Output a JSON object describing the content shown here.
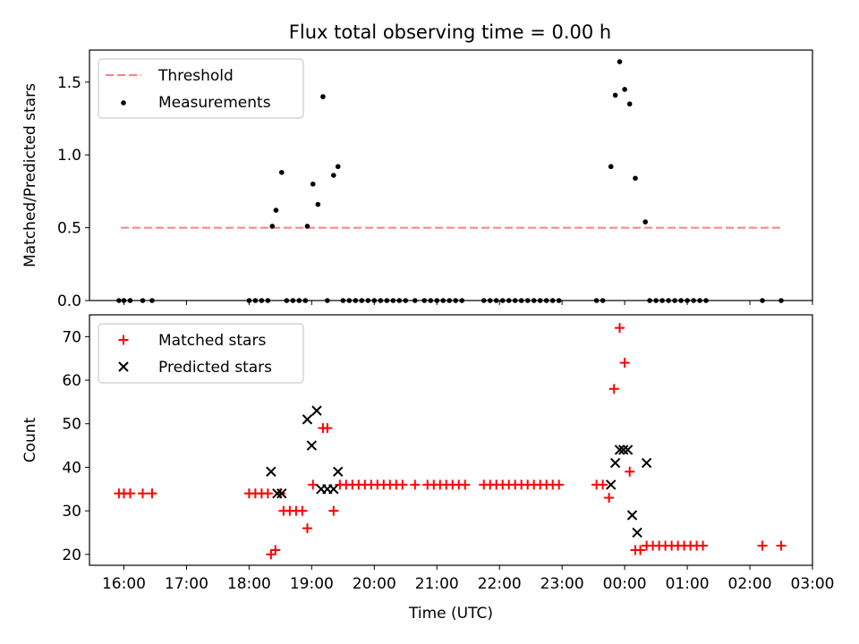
{
  "chart_data": [
    {
      "type": "scatter",
      "title": "Flux total observing time = 0.00 h",
      "xlabel": "",
      "ylabel": "Matched/Predicted stars",
      "xlim": [
        15.45,
        27.0
      ],
      "ylim": [
        0.0,
        1.72
      ],
      "yticks": [
        0.0,
        0.5,
        1.0,
        1.5
      ],
      "ytick_labels": [
        "0.0",
        "0.5",
        "1.0",
        "1.5"
      ],
      "legend": {
        "position": "top-left",
        "entries": [
          "Threshold",
          "Measurements"
        ]
      },
      "threshold": {
        "name": "Threshold",
        "x": [
          15.95,
          26.5
        ],
        "y": [
          0.5,
          0.5
        ],
        "color": "#ff7f7f"
      },
      "series": [
        {
          "name": "Measurements",
          "marker": "dot",
          "color": "#000000",
          "x": [
            15.92,
            16.0,
            16.1,
            16.3,
            16.45,
            18.0,
            18.1,
            18.2,
            18.3,
            18.37,
            18.43,
            18.52,
            18.6,
            18.7,
            18.8,
            18.9,
            18.93,
            19.02,
            19.1,
            19.18,
            19.25,
            19.35,
            19.42,
            19.5,
            19.6,
            19.7,
            19.8,
            19.9,
            20.0,
            20.1,
            20.2,
            20.3,
            20.4,
            20.5,
            20.65,
            20.8,
            20.9,
            21.0,
            21.1,
            21.2,
            21.3,
            21.4,
            21.75,
            21.85,
            21.95,
            22.05,
            22.15,
            22.25,
            22.35,
            22.45,
            22.55,
            22.65,
            22.75,
            22.85,
            22.95,
            23.55,
            23.65,
            23.78,
            23.85,
            23.92,
            24.0,
            24.08,
            24.17,
            24.33,
            24.4,
            24.5,
            24.6,
            24.7,
            24.8,
            24.9,
            25.0,
            25.1,
            25.2,
            25.3,
            26.2,
            26.5
          ],
          "y": [
            0,
            0,
            0,
            0,
            0,
            0,
            0,
            0,
            0,
            0.51,
            0.62,
            0.88,
            0,
            0,
            0,
            0,
            0.51,
            0.8,
            0.66,
            1.4,
            0,
            0.86,
            0.92,
            0,
            0,
            0,
            0,
            0,
            0,
            0,
            0,
            0,
            0,
            0,
            0,
            0,
            0,
            0,
            0,
            0,
            0,
            0,
            0,
            0,
            0,
            0,
            0,
            0,
            0,
            0,
            0,
            0,
            0,
            0,
            0,
            0,
            0,
            0.92,
            1.41,
            1.64,
            1.45,
            1.35,
            0.84,
            0.54,
            0,
            0,
            0,
            0,
            0,
            0,
            0,
            0,
            0,
            0,
            0,
            0
          ]
        }
      ]
    },
    {
      "type": "scatter",
      "title": "",
      "xlabel": "Time (UTC)",
      "ylabel": "Count",
      "xlim": [
        15.45,
        27.0
      ],
      "ylim": [
        17.5,
        75.0
      ],
      "xticks": [
        16,
        17,
        18,
        19,
        20,
        21,
        22,
        23,
        24,
        25,
        26,
        27
      ],
      "xtick_labels": [
        "16:00",
        "17:00",
        "18:00",
        "19:00",
        "20:00",
        "21:00",
        "22:00",
        "23:00",
        "00:00",
        "01:00",
        "02:00",
        "03:00"
      ],
      "yticks": [
        20,
        30,
        40,
        50,
        60,
        70
      ],
      "ytick_labels": [
        "20",
        "30",
        "40",
        "50",
        "60",
        "70"
      ],
      "legend": {
        "position": "top-left",
        "entries": [
          "Matched stars",
          "Predicted stars"
        ]
      },
      "series": [
        {
          "name": "Matched stars",
          "marker": "plus",
          "color": "#ff0000",
          "x": [
            15.92,
            16.0,
            16.1,
            16.3,
            16.45,
            18.0,
            18.1,
            18.2,
            18.3,
            18.35,
            18.42,
            18.5,
            18.55,
            18.65,
            18.75,
            18.85,
            18.93,
            19.02,
            19.18,
            19.25,
            19.35,
            19.45,
            19.55,
            19.65,
            19.75,
            19.85,
            19.95,
            20.05,
            20.15,
            20.25,
            20.35,
            20.45,
            20.65,
            20.85,
            20.95,
            21.05,
            21.15,
            21.25,
            21.35,
            21.45,
            21.75,
            21.85,
            21.95,
            22.05,
            22.15,
            22.25,
            22.35,
            22.45,
            22.55,
            22.65,
            22.75,
            22.85,
            22.95,
            23.55,
            23.65,
            23.75,
            23.83,
            23.92,
            24.0,
            24.08,
            24.17,
            24.25,
            24.35,
            24.45,
            24.55,
            24.65,
            24.75,
            24.85,
            24.95,
            25.05,
            25.15,
            25.25,
            26.2,
            26.5
          ],
          "y": [
            34,
            34,
            34,
            34,
            34,
            34,
            34,
            34,
            34,
            20,
            21,
            34,
            30,
            30,
            30,
            30,
            26,
            36,
            49,
            49,
            30,
            36,
            36,
            36,
            36,
            36,
            36,
            36,
            36,
            36,
            36,
            36,
            36,
            36,
            36,
            36,
            36,
            36,
            36,
            36,
            36,
            36,
            36,
            36,
            36,
            36,
            36,
            36,
            36,
            36,
            36,
            36,
            36,
            36,
            36,
            33,
            58,
            72,
            64,
            39,
            21,
            21,
            22,
            22,
            22,
            22,
            22,
            22,
            22,
            22,
            22,
            22,
            22,
            22
          ]
        },
        {
          "name": "Predicted stars",
          "marker": "x",
          "color": "#000000",
          "x": [
            18.35,
            18.45,
            18.52,
            18.93,
            19.0,
            19.08,
            19.15,
            19.25,
            19.35,
            19.42,
            23.78,
            23.85,
            23.92,
            23.98,
            24.05,
            24.12,
            24.2,
            24.35
          ],
          "y": [
            39,
            34,
            34,
            51,
            45,
            53,
            35,
            35,
            35,
            39,
            36,
            41,
            44,
            44,
            44,
            29,
            25,
            41
          ]
        }
      ]
    }
  ]
}
